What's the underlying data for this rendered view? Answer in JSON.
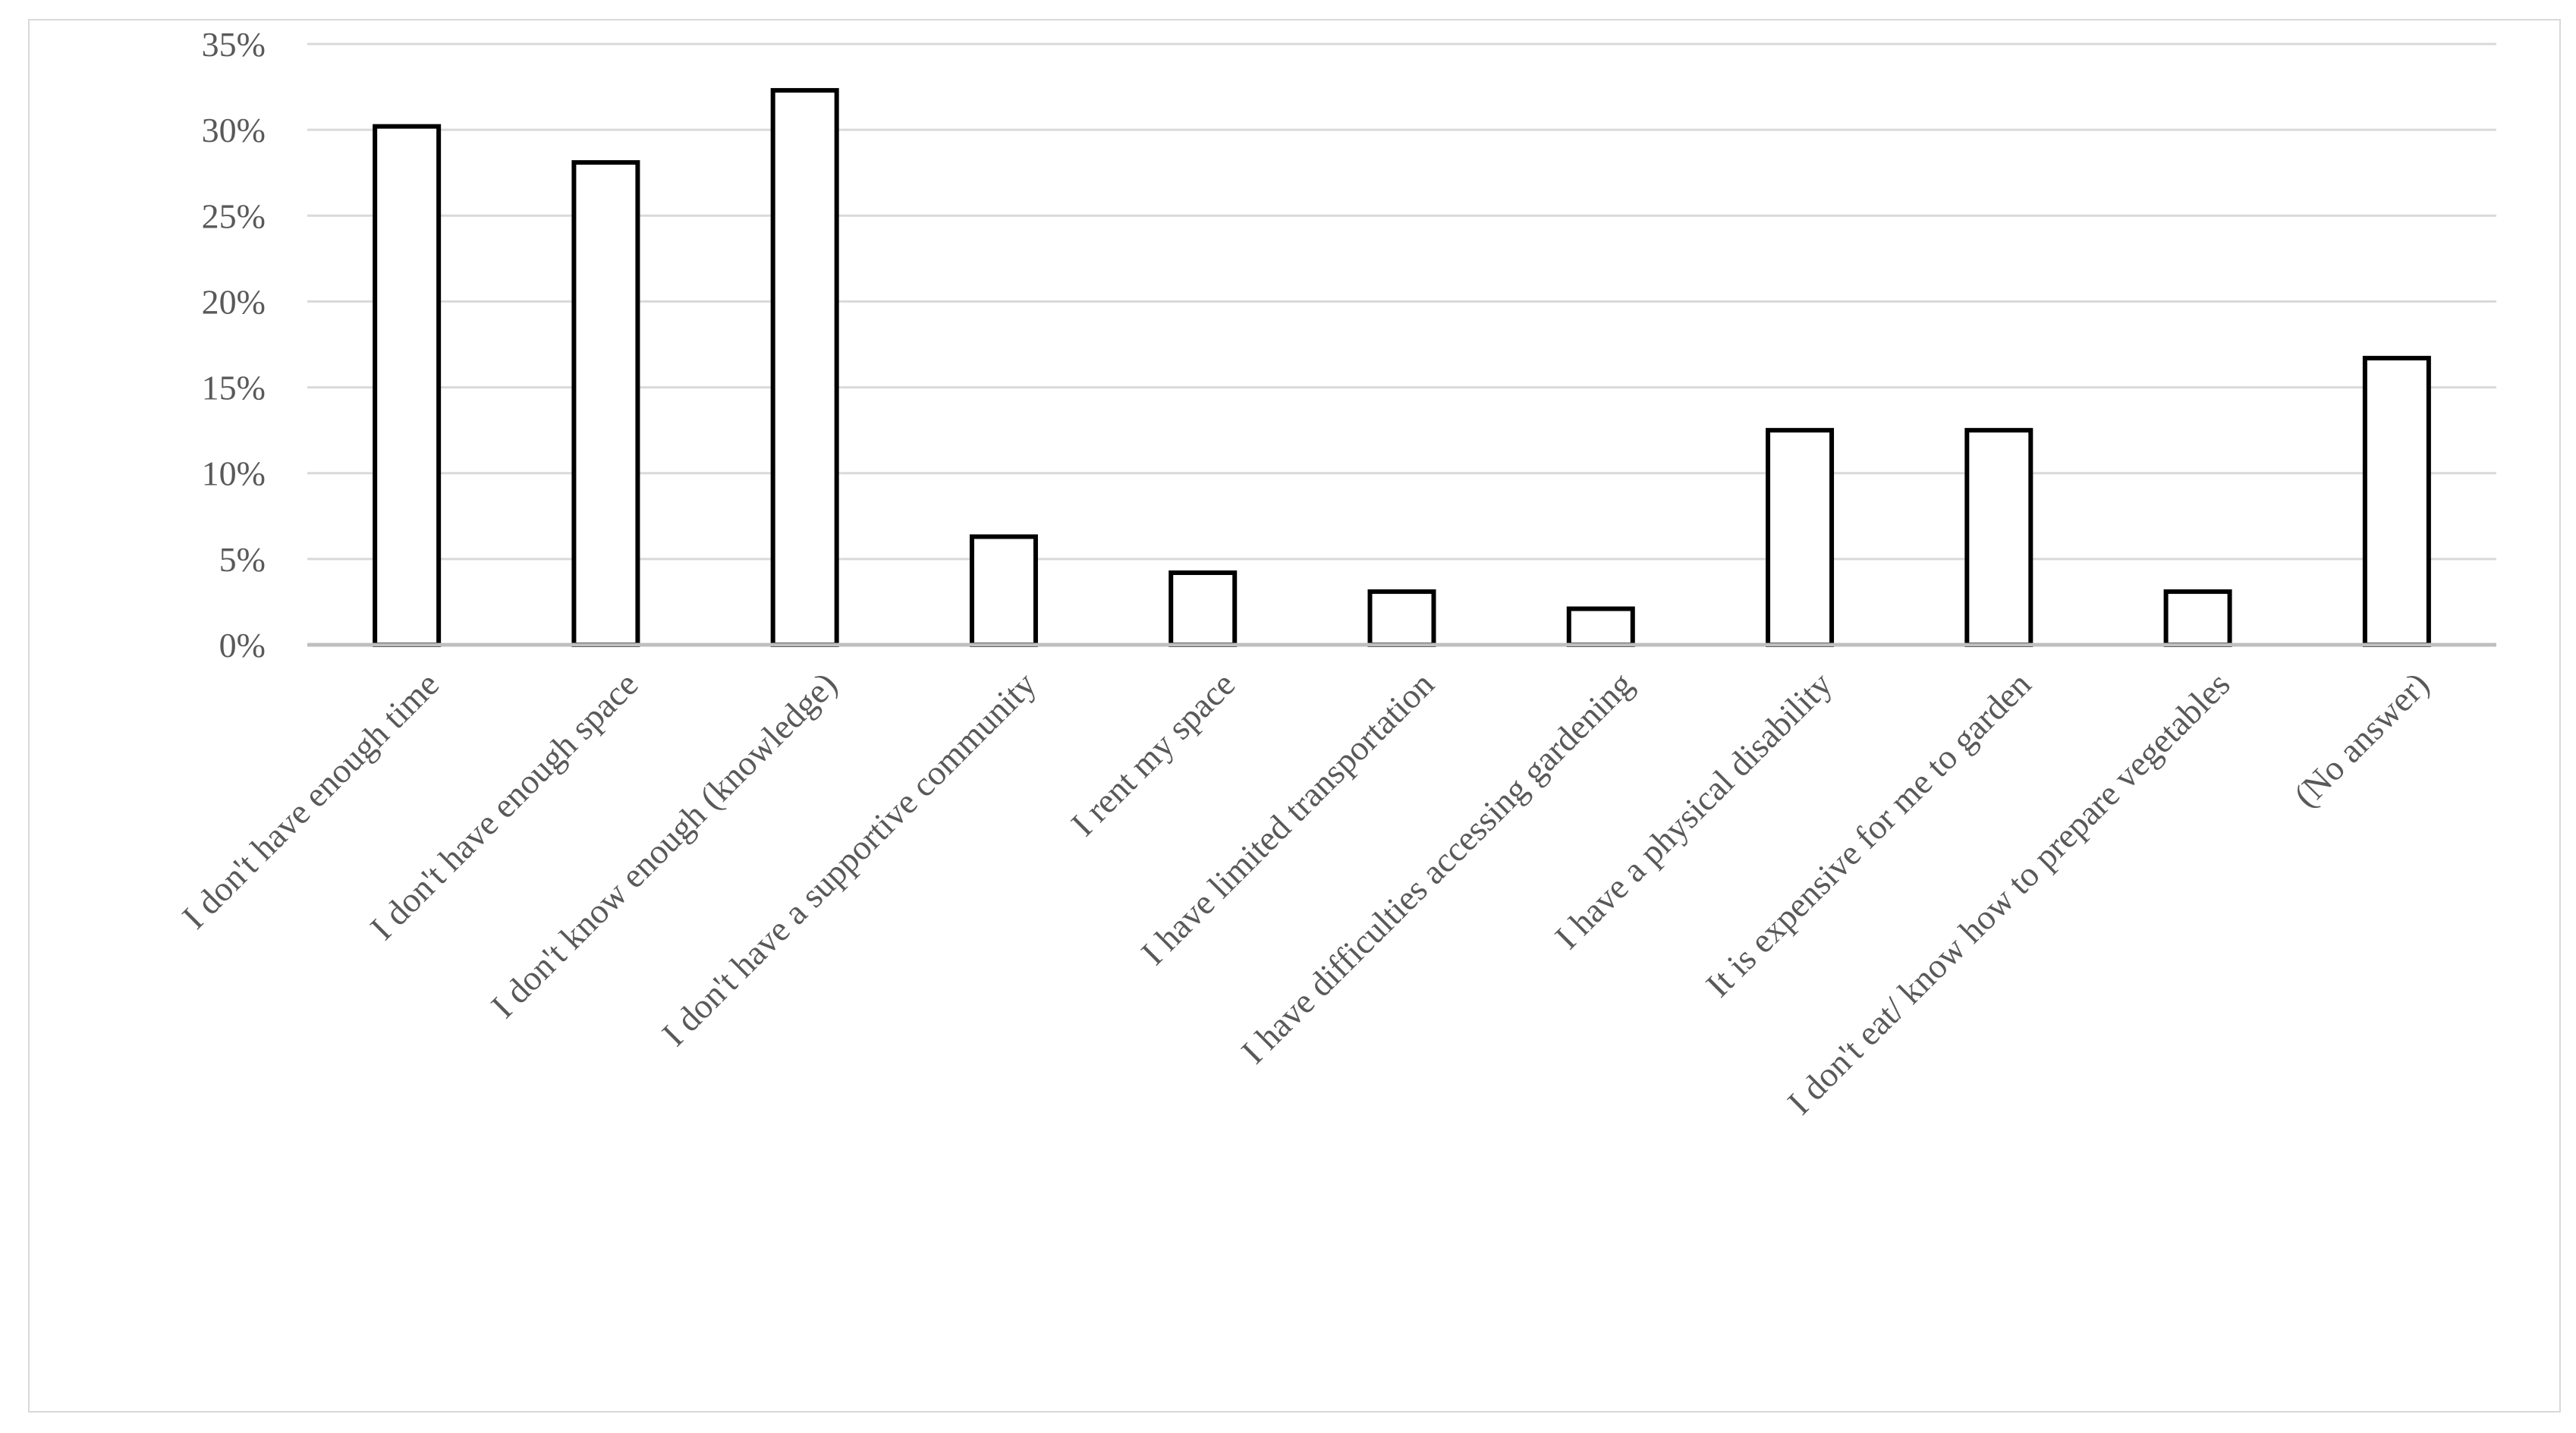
{
  "chart_data": {
    "type": "bar",
    "title": "",
    "xlabel": "",
    "ylabel": "",
    "ylim": [
      0,
      35
    ],
    "y_ticks": [
      0,
      5,
      10,
      15,
      20,
      25,
      30,
      35
    ],
    "y_tick_labels": [
      "0%",
      "5%",
      "10%",
      "15%",
      "20%",
      "25%",
      "30%",
      "35%"
    ],
    "grid": true,
    "legend": "none",
    "categories": [
      "I don't have enough time",
      "I don't have enough space",
      "I don't know enough (knowledge)",
      "I don't have a supportive community",
      "I rent my space",
      "I have limited transportation",
      "I have difficulties accessing gardening",
      "I have a physical disability",
      "It is expensive for me to garden",
      "I don't eat/ know how to prepare vegetables",
      "(No answer)"
    ],
    "values": [
      30.2,
      28.1,
      32.3,
      6.3,
      4.2,
      3.1,
      2.1,
      12.5,
      12.5,
      3.1,
      16.7
    ],
    "colors": {
      "bar_fill": "#ffffff",
      "bar_stroke": "#000000",
      "grid": "#d9d9d9",
      "text": "#595959"
    }
  }
}
